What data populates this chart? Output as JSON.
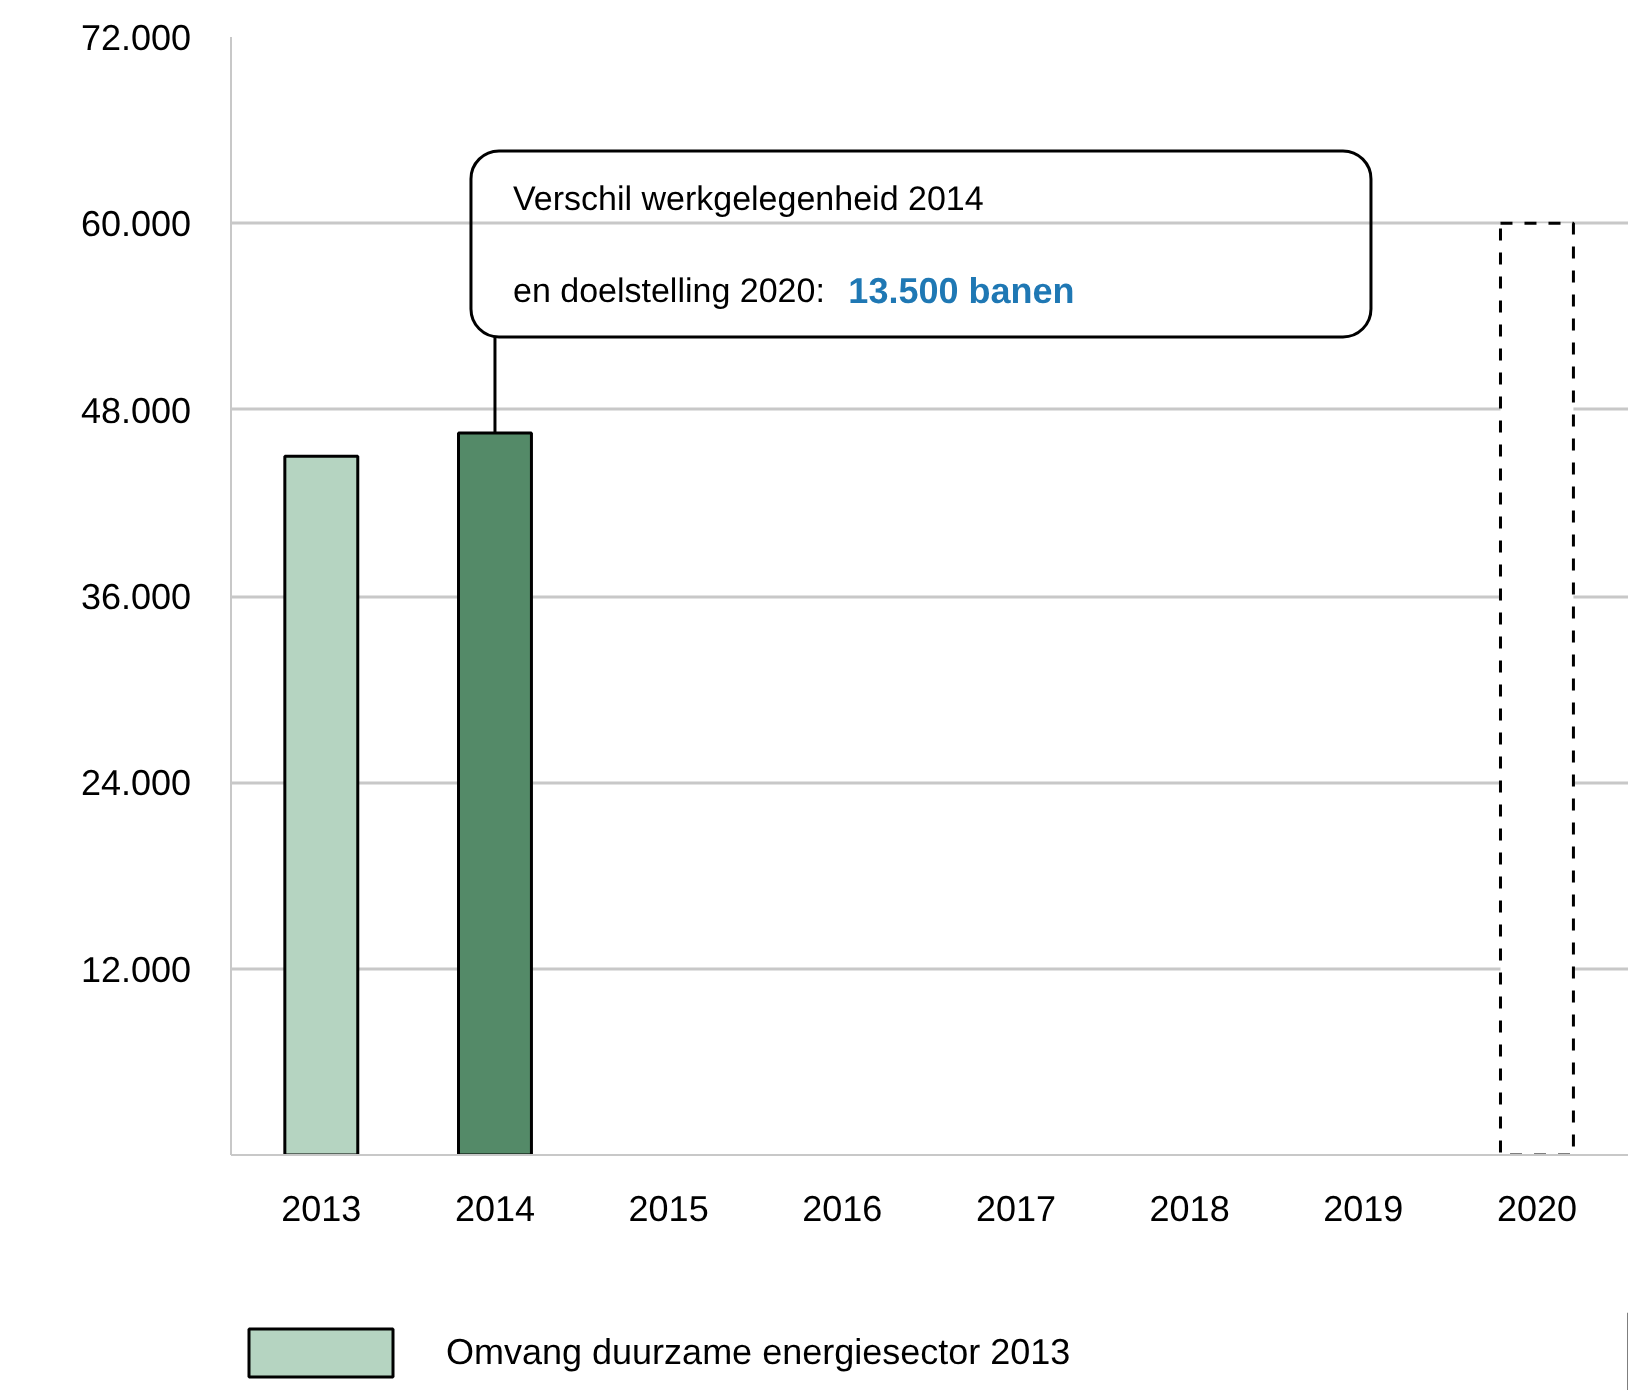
{
  "chart_data": {
    "type": "bar",
    "categories": [
      "2013",
      "2014",
      "2015",
      "2016",
      "2017",
      "2018",
      "2019",
      "2020"
    ],
    "series": [
      {
        "name": "Omvang duurzame energiesector 2013",
        "color": "#b5d4c1",
        "values": [
          45000,
          null,
          null,
          null,
          null,
          null,
          null,
          null
        ]
      },
      {
        "color": "#548a68",
        "values": [
          null,
          46500,
          null,
          null,
          null,
          null,
          null,
          null
        ]
      },
      {
        "color": "#ffffff",
        "line_style": "dashed",
        "values": [
          null,
          null,
          null,
          null,
          null,
          null,
          null,
          60000
        ]
      }
    ],
    "ylim": [
      0,
      72000
    ],
    "yticks": [
      {
        "value": 12000,
        "label": "12.000"
      },
      {
        "value": 24000,
        "label": "24.000"
      },
      {
        "value": 36000,
        "label": "36.000"
      },
      {
        "value": 48000,
        "label": "48.000"
      },
      {
        "value": 60000,
        "label": "60.000"
      },
      {
        "value": 72000,
        "label": "72.000"
      }
    ],
    "grid": "y",
    "legend": "bottom",
    "annotations": [
      "Verschil werkgelegenheid 2014",
      {
        "text": "en doelstelling 2020:",
        "x": "2014",
        "y": 46500
      },
      "13.500 banen"
    ]
  }
}
